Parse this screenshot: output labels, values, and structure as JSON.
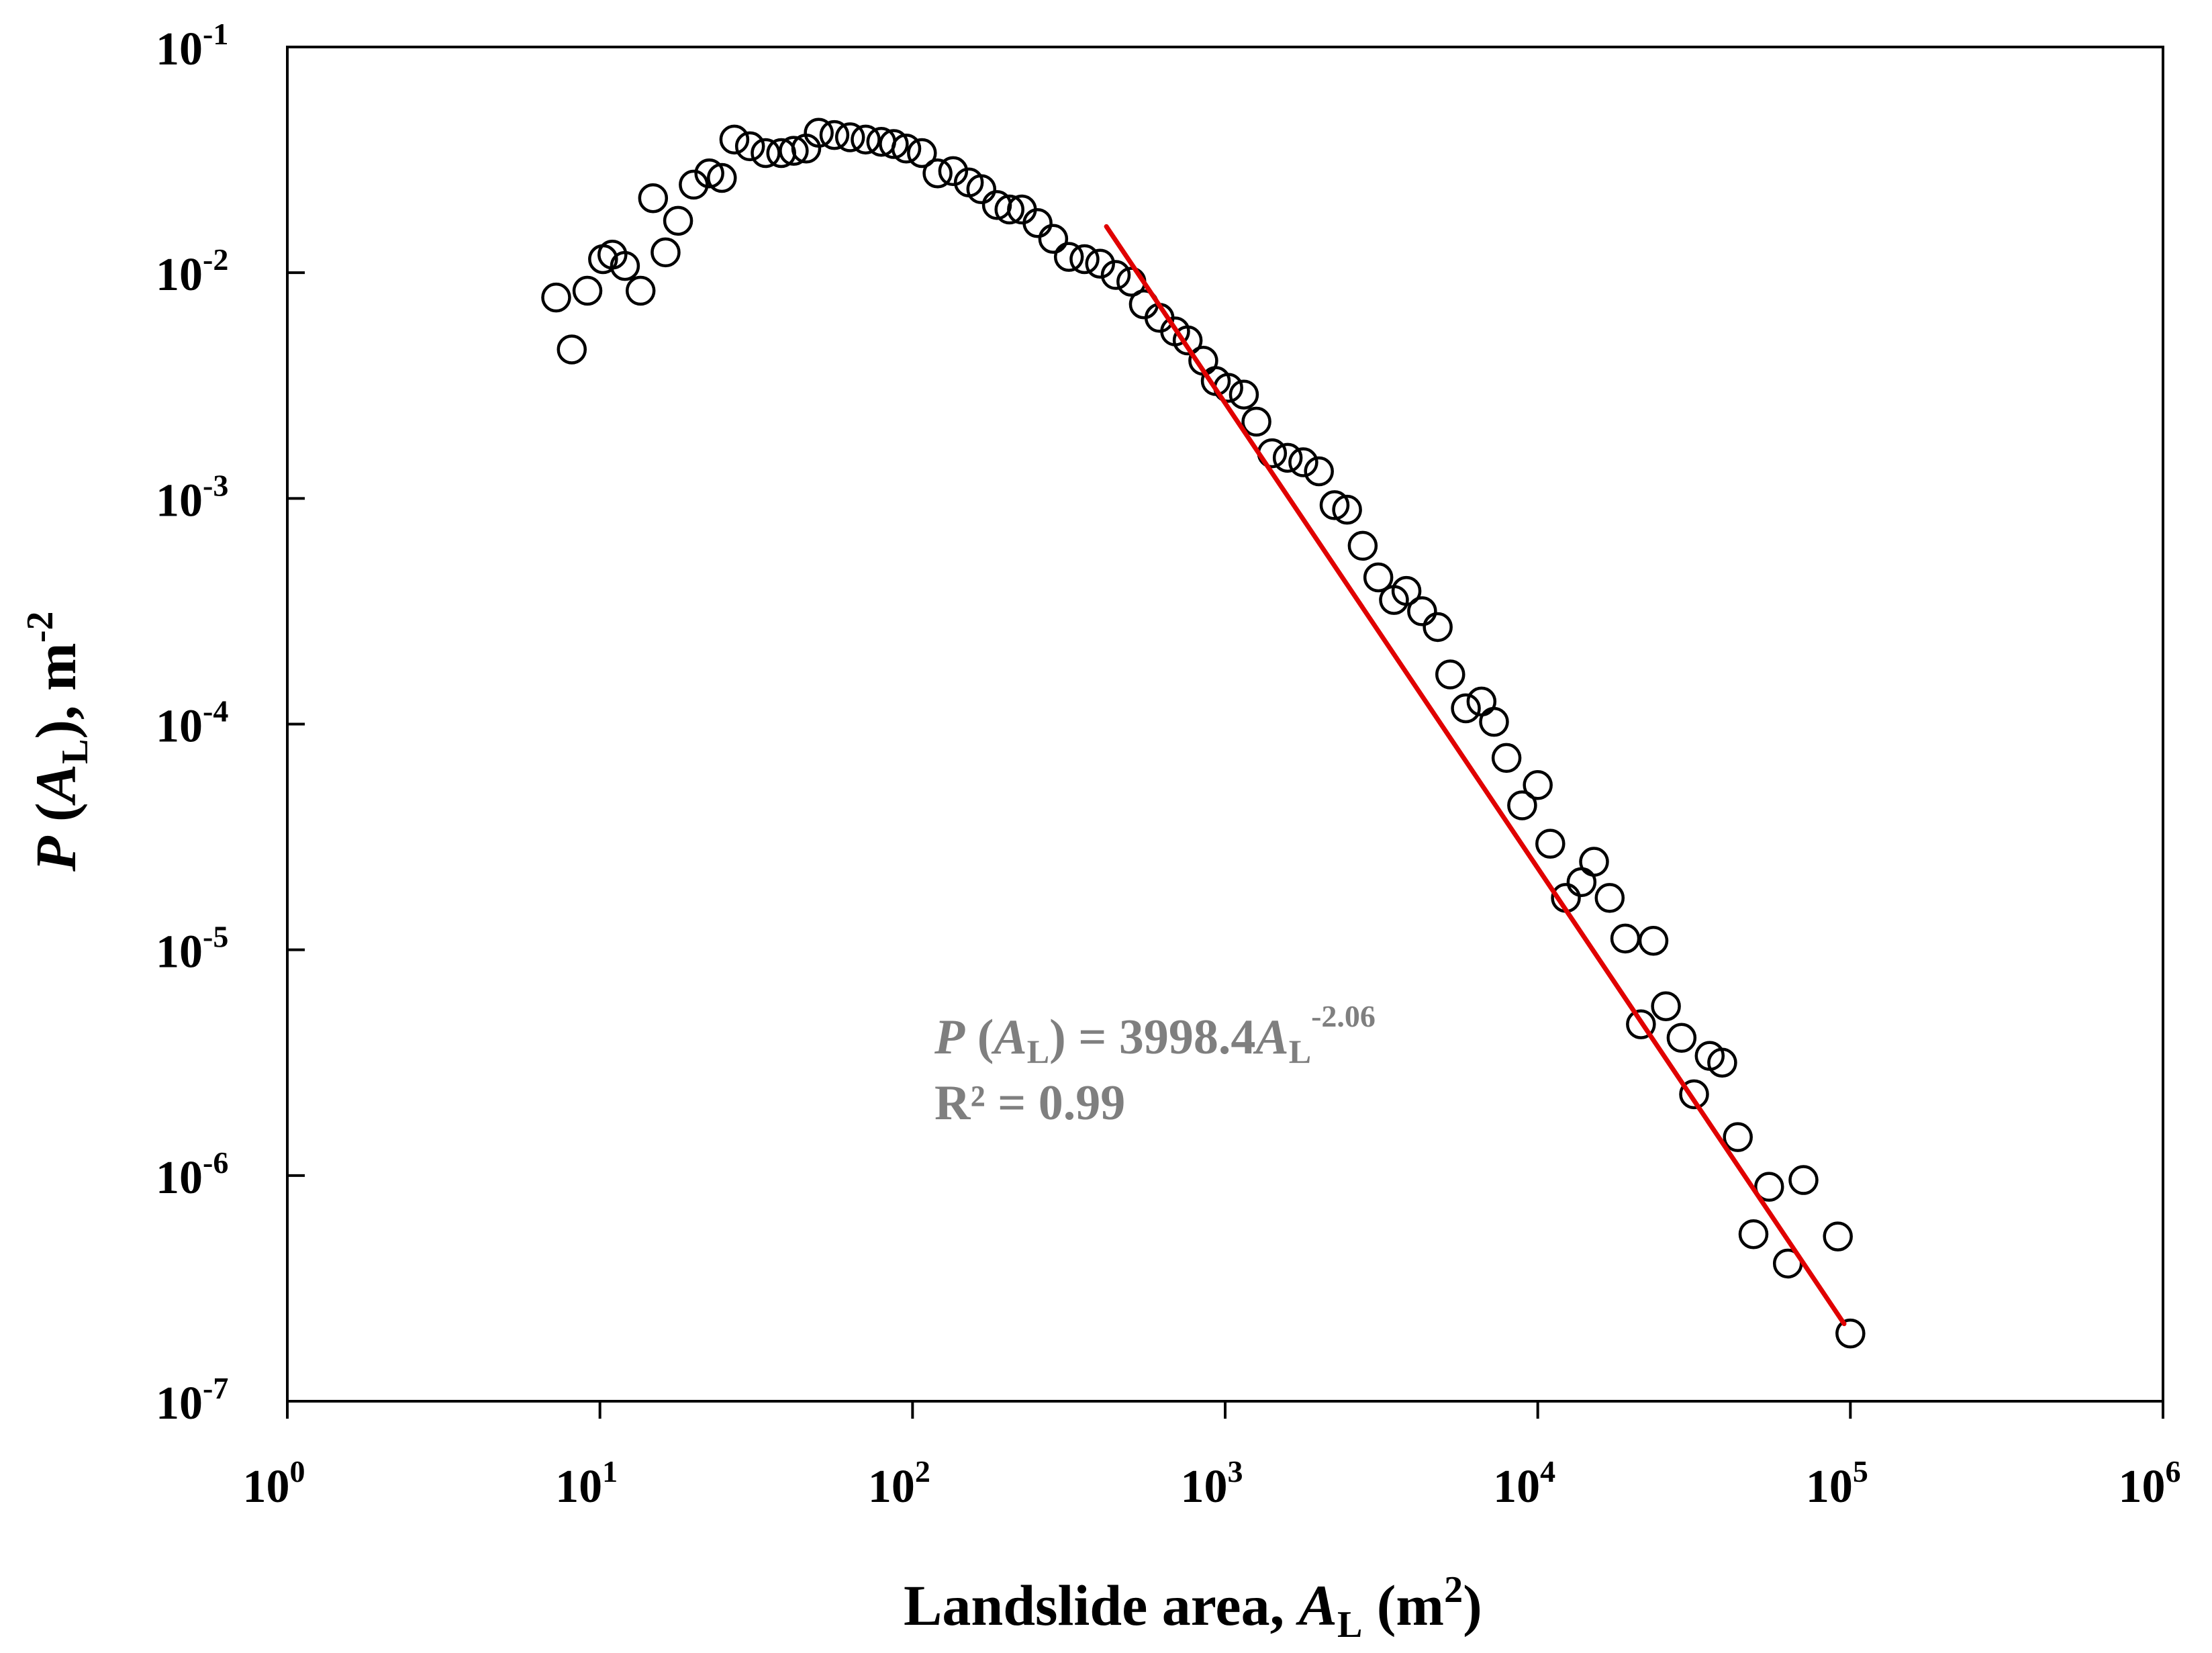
{
  "chart_data": {
    "type": "scatter",
    "title": "",
    "xscale": "log",
    "yscale": "log",
    "xlim_log10": [
      0,
      6
    ],
    "ylim_log10": [
      -7,
      -1
    ],
    "x_ticks": [
      {
        "base": "10",
        "exp": "0"
      },
      {
        "base": "10",
        "exp": "1"
      },
      {
        "base": "10",
        "exp": "2"
      },
      {
        "base": "10",
        "exp": "3"
      },
      {
        "base": "10",
        "exp": "4"
      },
      {
        "base": "10",
        "exp": "5"
      },
      {
        "base": "10",
        "exp": "6"
      }
    ],
    "y_ticks": [
      {
        "base": "10",
        "exp": "-1"
      },
      {
        "base": "10",
        "exp": "-2"
      },
      {
        "base": "10",
        "exp": "-3"
      },
      {
        "base": "10",
        "exp": "-4"
      },
      {
        "base": "10",
        "exp": "-5"
      },
      {
        "base": "10",
        "exp": "-6"
      },
      {
        "base": "10",
        "exp": "-7"
      }
    ],
    "xlabel": {
      "pre": "Landslide area, ",
      "var": "A",
      "sub": "L",
      "post1": " (m",
      "sup": "2",
      "post2": ")"
    },
    "ylabel": {
      "var": "P",
      "open": " (",
      "var2": "A",
      "sub": "L",
      "close": "), m",
      "sup": "-2"
    },
    "series": [
      {
        "name": "observed",
        "marker": "open-circle",
        "color": "#000000",
        "points_log10": [
          [
            0.86,
            -2.11
          ],
          [
            0.91,
            -2.34
          ],
          [
            0.96,
            -2.08
          ],
          [
            1.01,
            -1.94
          ],
          [
            1.04,
            -1.92
          ],
          [
            1.08,
            -1.97
          ],
          [
            1.13,
            -2.08
          ],
          [
            1.17,
            -1.67
          ],
          [
            1.21,
            -1.91
          ],
          [
            1.25,
            -1.77
          ],
          [
            1.3,
            -1.61
          ],
          [
            1.35,
            -1.56
          ],
          [
            1.39,
            -1.58
          ],
          [
            1.43,
            -1.41
          ],
          [
            1.48,
            -1.44
          ],
          [
            1.53,
            -1.47
          ],
          [
            1.58,
            -1.47
          ],
          [
            1.62,
            -1.46
          ],
          [
            1.66,
            -1.45
          ],
          [
            1.7,
            -1.38
          ],
          [
            1.75,
            -1.39
          ],
          [
            1.8,
            -1.4
          ],
          [
            1.85,
            -1.41
          ],
          [
            1.9,
            -1.42
          ],
          [
            1.94,
            -1.43
          ],
          [
            1.98,
            -1.45
          ],
          [
            2.03,
            -1.47
          ],
          [
            2.08,
            -1.56
          ],
          [
            2.13,
            -1.55
          ],
          [
            2.18,
            -1.6
          ],
          [
            2.22,
            -1.63
          ],
          [
            2.27,
            -1.7
          ],
          [
            2.31,
            -1.72
          ],
          [
            2.35,
            -1.72
          ],
          [
            2.4,
            -1.78
          ],
          [
            2.45,
            -1.85
          ],
          [
            2.5,
            -1.93
          ],
          [
            2.55,
            -1.94
          ],
          [
            2.6,
            -1.96
          ],
          [
            2.65,
            -2.01
          ],
          [
            2.7,
            -2.04
          ],
          [
            2.74,
            -2.14
          ],
          [
            2.79,
            -2.2
          ],
          [
            2.84,
            -2.26
          ],
          [
            2.88,
            -2.3
          ],
          [
            2.93,
            -2.39
          ],
          [
            2.97,
            -2.48
          ],
          [
            3.01,
            -2.51
          ],
          [
            3.06,
            -2.54
          ],
          [
            3.1,
            -2.66
          ],
          [
            3.15,
            -2.8
          ],
          [
            3.2,
            -2.82
          ],
          [
            3.25,
            -2.84
          ],
          [
            3.3,
            -2.88
          ],
          [
            3.35,
            -3.03
          ],
          [
            3.39,
            -3.05
          ],
          [
            3.44,
            -3.21
          ],
          [
            3.49,
            -3.35
          ],
          [
            3.54,
            -3.45
          ],
          [
            3.58,
            -3.41
          ],
          [
            3.63,
            -3.5
          ],
          [
            3.68,
            -3.57
          ],
          [
            3.72,
            -3.78
          ],
          [
            3.77,
            -3.93
          ],
          [
            3.82,
            -3.9
          ],
          [
            3.86,
            -3.99
          ],
          [
            3.9,
            -4.15
          ],
          [
            3.95,
            -4.36
          ],
          [
            4.0,
            -4.27
          ],
          [
            4.04,
            -4.53
          ],
          [
            4.09,
            -4.77
          ],
          [
            4.14,
            -4.7
          ],
          [
            4.18,
            -4.61
          ],
          [
            4.23,
            -4.77
          ],
          [
            4.28,
            -4.95
          ],
          [
            4.33,
            -5.33
          ],
          [
            4.37,
            -4.96
          ],
          [
            4.41,
            -5.25
          ],
          [
            4.46,
            -5.39
          ],
          [
            4.5,
            -5.64
          ],
          [
            4.55,
            -5.47
          ],
          [
            4.59,
            -5.5
          ],
          [
            4.64,
            -5.83
          ],
          [
            4.69,
            -6.26
          ],
          [
            4.74,
            -6.05
          ],
          [
            4.8,
            -6.39
          ],
          [
            4.85,
            -6.02
          ],
          [
            4.96,
            -6.27
          ],
          [
            5.0,
            -6.7
          ]
        ]
      }
    ],
    "fit": {
      "name": "power-law fit",
      "color": "#e00000",
      "coefficient": 3998.4,
      "exponent": -2.06,
      "x_range_log10": [
        2.62,
        4.98
      ]
    },
    "annotation": {
      "var": "P",
      "open": " (",
      "var2": "A",
      "sub": "L",
      "eq": ") = 3998.4",
      "var3": "A",
      "sub2": "L",
      "sup": "-2.06",
      "r2": "R² = 0.99",
      "color": "#7f7f7f"
    }
  }
}
